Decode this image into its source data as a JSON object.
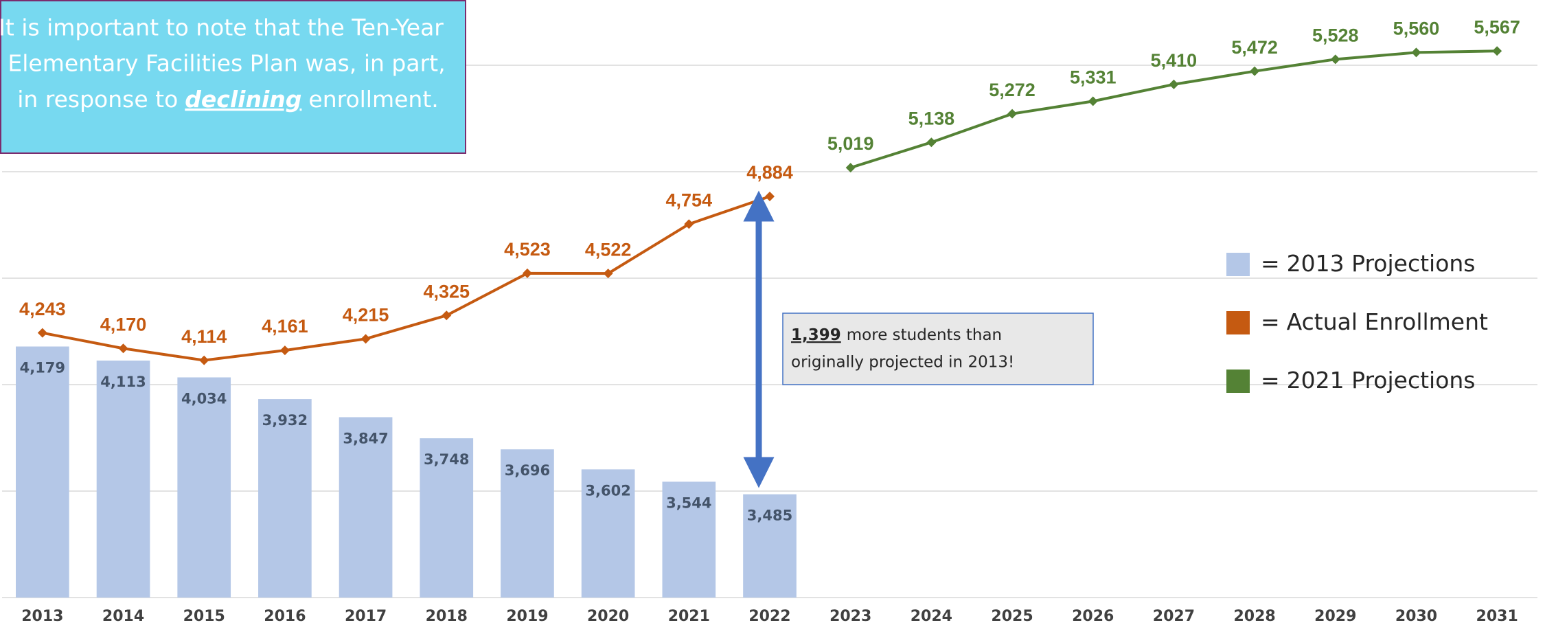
{
  "chart_data": {
    "type": "combo",
    "categories": [
      "2013",
      "2014",
      "2015",
      "2016",
      "2017",
      "2018",
      "2019",
      "2020",
      "2021",
      "2022",
      "2023",
      "2024",
      "2025",
      "2026",
      "2027",
      "2028",
      "2029",
      "2030",
      "2031"
    ],
    "series": [
      {
        "name": "2013 Projections",
        "type": "bar",
        "color": "#B4C7E7",
        "values": [
          4179,
          4113,
          4034,
          3932,
          3847,
          3748,
          3696,
          3602,
          3544,
          3485,
          null,
          null,
          null,
          null,
          null,
          null,
          null,
          null,
          null
        ],
        "value_labels": [
          "4,179",
          "4,113",
          "4,034",
          "3,932",
          "3,847",
          "3,748",
          "3,696",
          "3,602",
          "3,544",
          "3,485",
          null,
          null,
          null,
          null,
          null,
          null,
          null,
          null,
          null
        ]
      },
      {
        "name": "Actual Enrollment",
        "type": "line",
        "color": "#C55A11",
        "values": [
          4243,
          4170,
          4114,
          4161,
          4215,
          4325,
          4523,
          4522,
          4754,
          4884,
          null,
          null,
          null,
          null,
          null,
          null,
          null,
          null,
          null
        ],
        "value_labels": [
          "4,243",
          "4,170",
          "4,114",
          "4,161",
          "4,215",
          "4,325",
          "4,523",
          "4,522",
          "4,754",
          "4,884",
          null,
          null,
          null,
          null,
          null,
          null,
          null,
          null,
          null
        ]
      },
      {
        "name": "2021 Projections",
        "type": "line",
        "color": "#548235",
        "values": [
          null,
          null,
          null,
          null,
          null,
          null,
          null,
          null,
          null,
          null,
          5019,
          5138,
          5272,
          5331,
          5410,
          5472,
          5528,
          5560,
          5567
        ],
        "value_labels": [
          null,
          null,
          null,
          null,
          null,
          null,
          null,
          null,
          null,
          null,
          "5,019",
          "5,138",
          "5,272",
          "5,331",
          "5,410",
          "5,472",
          "5,528",
          "5,560",
          "5,567"
        ]
      }
    ],
    "ylim": [
      3000,
      5600
    ],
    "yticks": [
      3000,
      3500,
      4000,
      4500,
      5000,
      5500
    ],
    "grid": true,
    "legend_prefix": "=",
    "note": {
      "line1": "It is important to note that the Ten-Year",
      "line2": "Elementary Facilities Plan was, in part,",
      "line3a": "in response to",
      "line3b": "declining",
      "line3c": "enrollment."
    },
    "callout": {
      "number": "1,399",
      "text1": "more students than",
      "text2": "originally projected in 2013!"
    }
  }
}
